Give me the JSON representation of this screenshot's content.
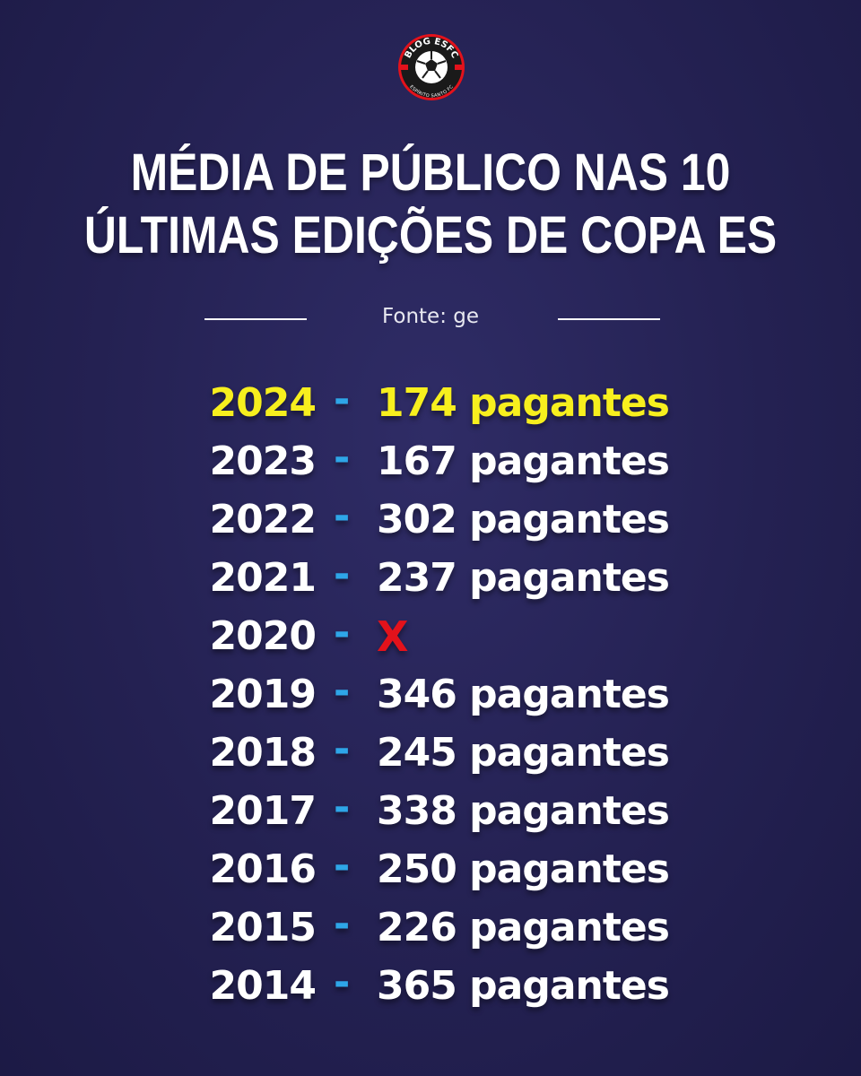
{
  "logo": {
    "top_text": "BLOG ESFC",
    "bottom_text": "ESPÍRITO SANTO FC",
    "colors": {
      "ring": "#1a1a1a",
      "accent": "#e3121b",
      "ball": "#ffffff"
    }
  },
  "title": {
    "line1": "MÉDIA DE PÚBLICO NAS 10",
    "line2": "ÚLTIMAS EDIÇÕES DE COPA ES"
  },
  "source": {
    "label": "Fonte: ge"
  },
  "dash": "-",
  "colors": {
    "background": "#242152",
    "highlight": "#f7ef1e",
    "dash": "#2ea6e8",
    "missing": "#e3121b"
  },
  "rows": [
    {
      "year": "2024",
      "value": "174 pagantes"
    },
    {
      "year": "2023",
      "value": "167 pagantes"
    },
    {
      "year": "2022",
      "value": "302 pagantes"
    },
    {
      "year": "2021",
      "value": "237 pagantes"
    },
    {
      "year": "2020",
      "value": "X"
    },
    {
      "year": "2019",
      "value": "346 pagantes"
    },
    {
      "year": "2018",
      "value": "245 pagantes"
    },
    {
      "year": "2017",
      "value": "338 pagantes"
    },
    {
      "year": "2016",
      "value": "250 pagantes"
    },
    {
      "year": "2015",
      "value": "226 pagantes"
    },
    {
      "year": "2014",
      "value": "365 pagantes"
    }
  ]
}
